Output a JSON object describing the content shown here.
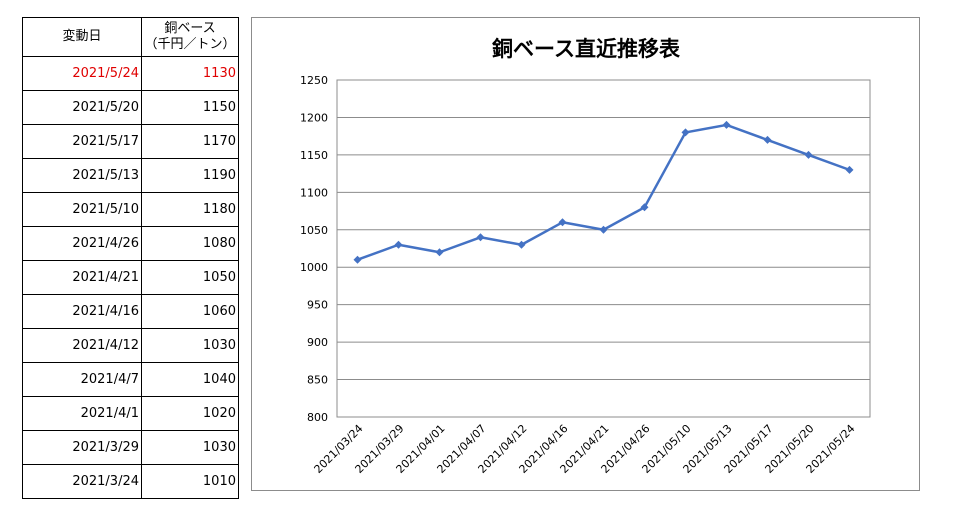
{
  "table": {
    "header_date": "変動日",
    "header_value_line1": "銅ベース",
    "header_value_line2": "（千円／トン）",
    "rows": [
      {
        "date": "2021/5/24",
        "value": "1130",
        "highlight": true
      },
      {
        "date": "2021/5/20",
        "value": "1150"
      },
      {
        "date": "2021/5/17",
        "value": "1170"
      },
      {
        "date": "2021/5/13",
        "value": "1190"
      },
      {
        "date": "2021/5/10",
        "value": "1180"
      },
      {
        "date": "2021/4/26",
        "value": "1080"
      },
      {
        "date": "2021/4/21",
        "value": "1050"
      },
      {
        "date": "2021/4/16",
        "value": "1060"
      },
      {
        "date": "2021/4/12",
        "value": "1030"
      },
      {
        "date": "2021/4/7",
        "value": "1040"
      },
      {
        "date": "2021/4/1",
        "value": "1020"
      },
      {
        "date": "2021/3/29",
        "value": "1030"
      },
      {
        "date": "2021/3/24",
        "value": "1010"
      }
    ],
    "highlight_color": "#e00000"
  },
  "chart_data": {
    "type": "line",
    "title": "銅ベース直近推移表",
    "xlabel": "",
    "ylabel": "",
    "categories": [
      "2021/03/24",
      "2021/03/29",
      "2021/04/01",
      "2021/04/07",
      "2021/04/12",
      "2021/04/16",
      "2021/04/21",
      "2021/04/26",
      "2021/05/10",
      "2021/05/13",
      "2021/05/17",
      "2021/05/20",
      "2021/05/24"
    ],
    "series": [
      {
        "values": [
          1010,
          1030,
          1020,
          1040,
          1030,
          1060,
          1050,
          1080,
          1180,
          1190,
          1170,
          1150,
          1130
        ],
        "color": "#4472c4",
        "marker": "diamond"
      }
    ],
    "ylim": [
      800,
      1250
    ],
    "yticks": [
      800,
      850,
      900,
      950,
      1000,
      1050,
      1100,
      1150,
      1200,
      1250
    ],
    "grid": true,
    "legend": "none"
  }
}
